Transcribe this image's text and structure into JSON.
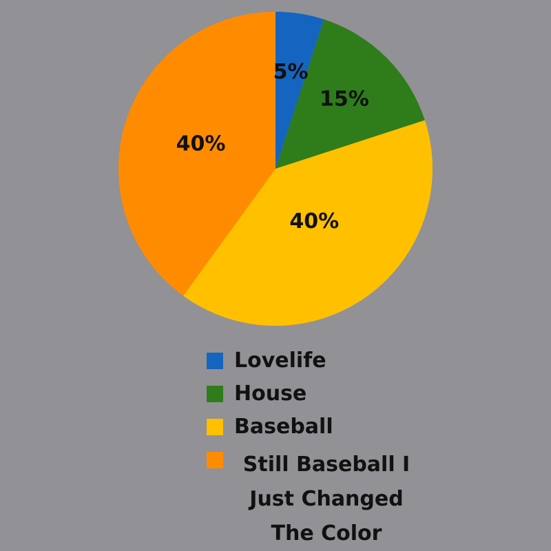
{
  "chart_data": {
    "type": "pie",
    "title": "",
    "slices": [
      {
        "label": "Lovelife",
        "value": 5,
        "display": "5%",
        "color": "#1565c0"
      },
      {
        "label": "House",
        "value": 15,
        "display": "15%",
        "color": "#2e7d1a"
      },
      {
        "label": "Baseball",
        "value": 40,
        "display": "40%",
        "color": "#ffc000"
      },
      {
        "label": "Still Baseball\nI Just Changed\nThe Color",
        "value": 40,
        "display": "40%",
        "color": "#ff8c00"
      }
    ],
    "legend": {
      "placement": "bottom",
      "entries": [
        "Lovelife",
        "House",
        "Baseball",
        "Still Baseball I Just Changed The Color"
      ]
    }
  }
}
